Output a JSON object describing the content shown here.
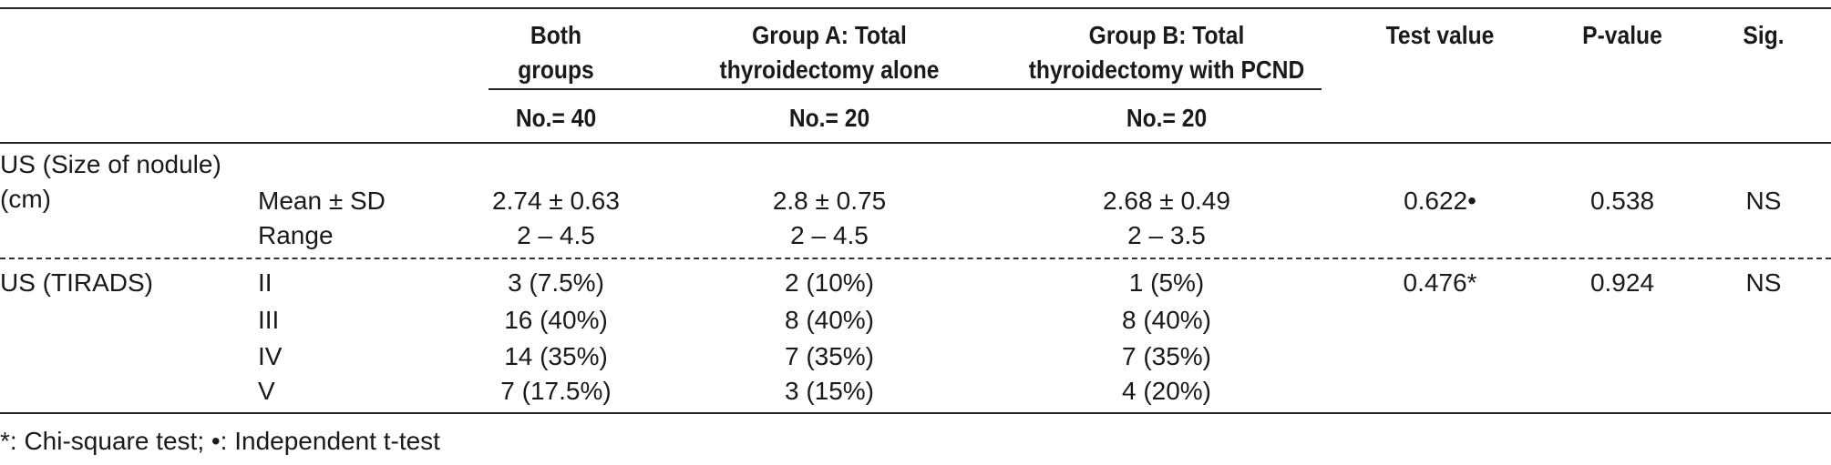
{
  "table": {
    "header": {
      "col_both": "Both groups",
      "col_a_line1": "Group A: Total",
      "col_a_line2": "thyroidectomy alone",
      "col_b_line1": "Group B: Total",
      "col_b_line2": "thyroidectomy with PCND",
      "col_test": "Test value",
      "col_p": "P-value",
      "col_sig": "Sig.",
      "n_both": "No.= 40",
      "n_a": "No.= 20",
      "n_b": "No.= 20"
    },
    "section_size": {
      "label_line1": "US (Size of nodule)",
      "label_line2": "(cm)",
      "rows": [
        {
          "stat": "Mean ± SD",
          "both": "2.74 ± 0.63",
          "a": "2.8 ± 0.75",
          "b": "2.68 ± 0.49"
        },
        {
          "stat": "Range",
          "both": "2 – 4.5",
          "a": "2 – 4.5",
          "b": "2 – 3.5"
        }
      ],
      "test_value": "0.622•",
      "p_value": "0.538",
      "sig": "NS"
    },
    "section_tirads": {
      "label": "US (TIRADS)",
      "rows": [
        {
          "stat": "II",
          "both": "3 (7.5%)",
          "a": "2 (10%)",
          "b": "1 (5%)"
        },
        {
          "stat": "III",
          "both": "16 (40%)",
          "a": "8 (40%)",
          "b": "8 (40%)"
        },
        {
          "stat": "IV",
          "both": "14 (35%)",
          "a": "7 (35%)",
          "b": "7 (35%)"
        },
        {
          "stat": "V",
          "both": "7 (17.5%)",
          "a": "3 (15%)",
          "b": "4 (20%)"
        }
      ],
      "test_value": "0.476*",
      "p_value": "0.924",
      "sig": "NS"
    },
    "footnote": "*: Chi-square test; •: Independent t-test"
  }
}
